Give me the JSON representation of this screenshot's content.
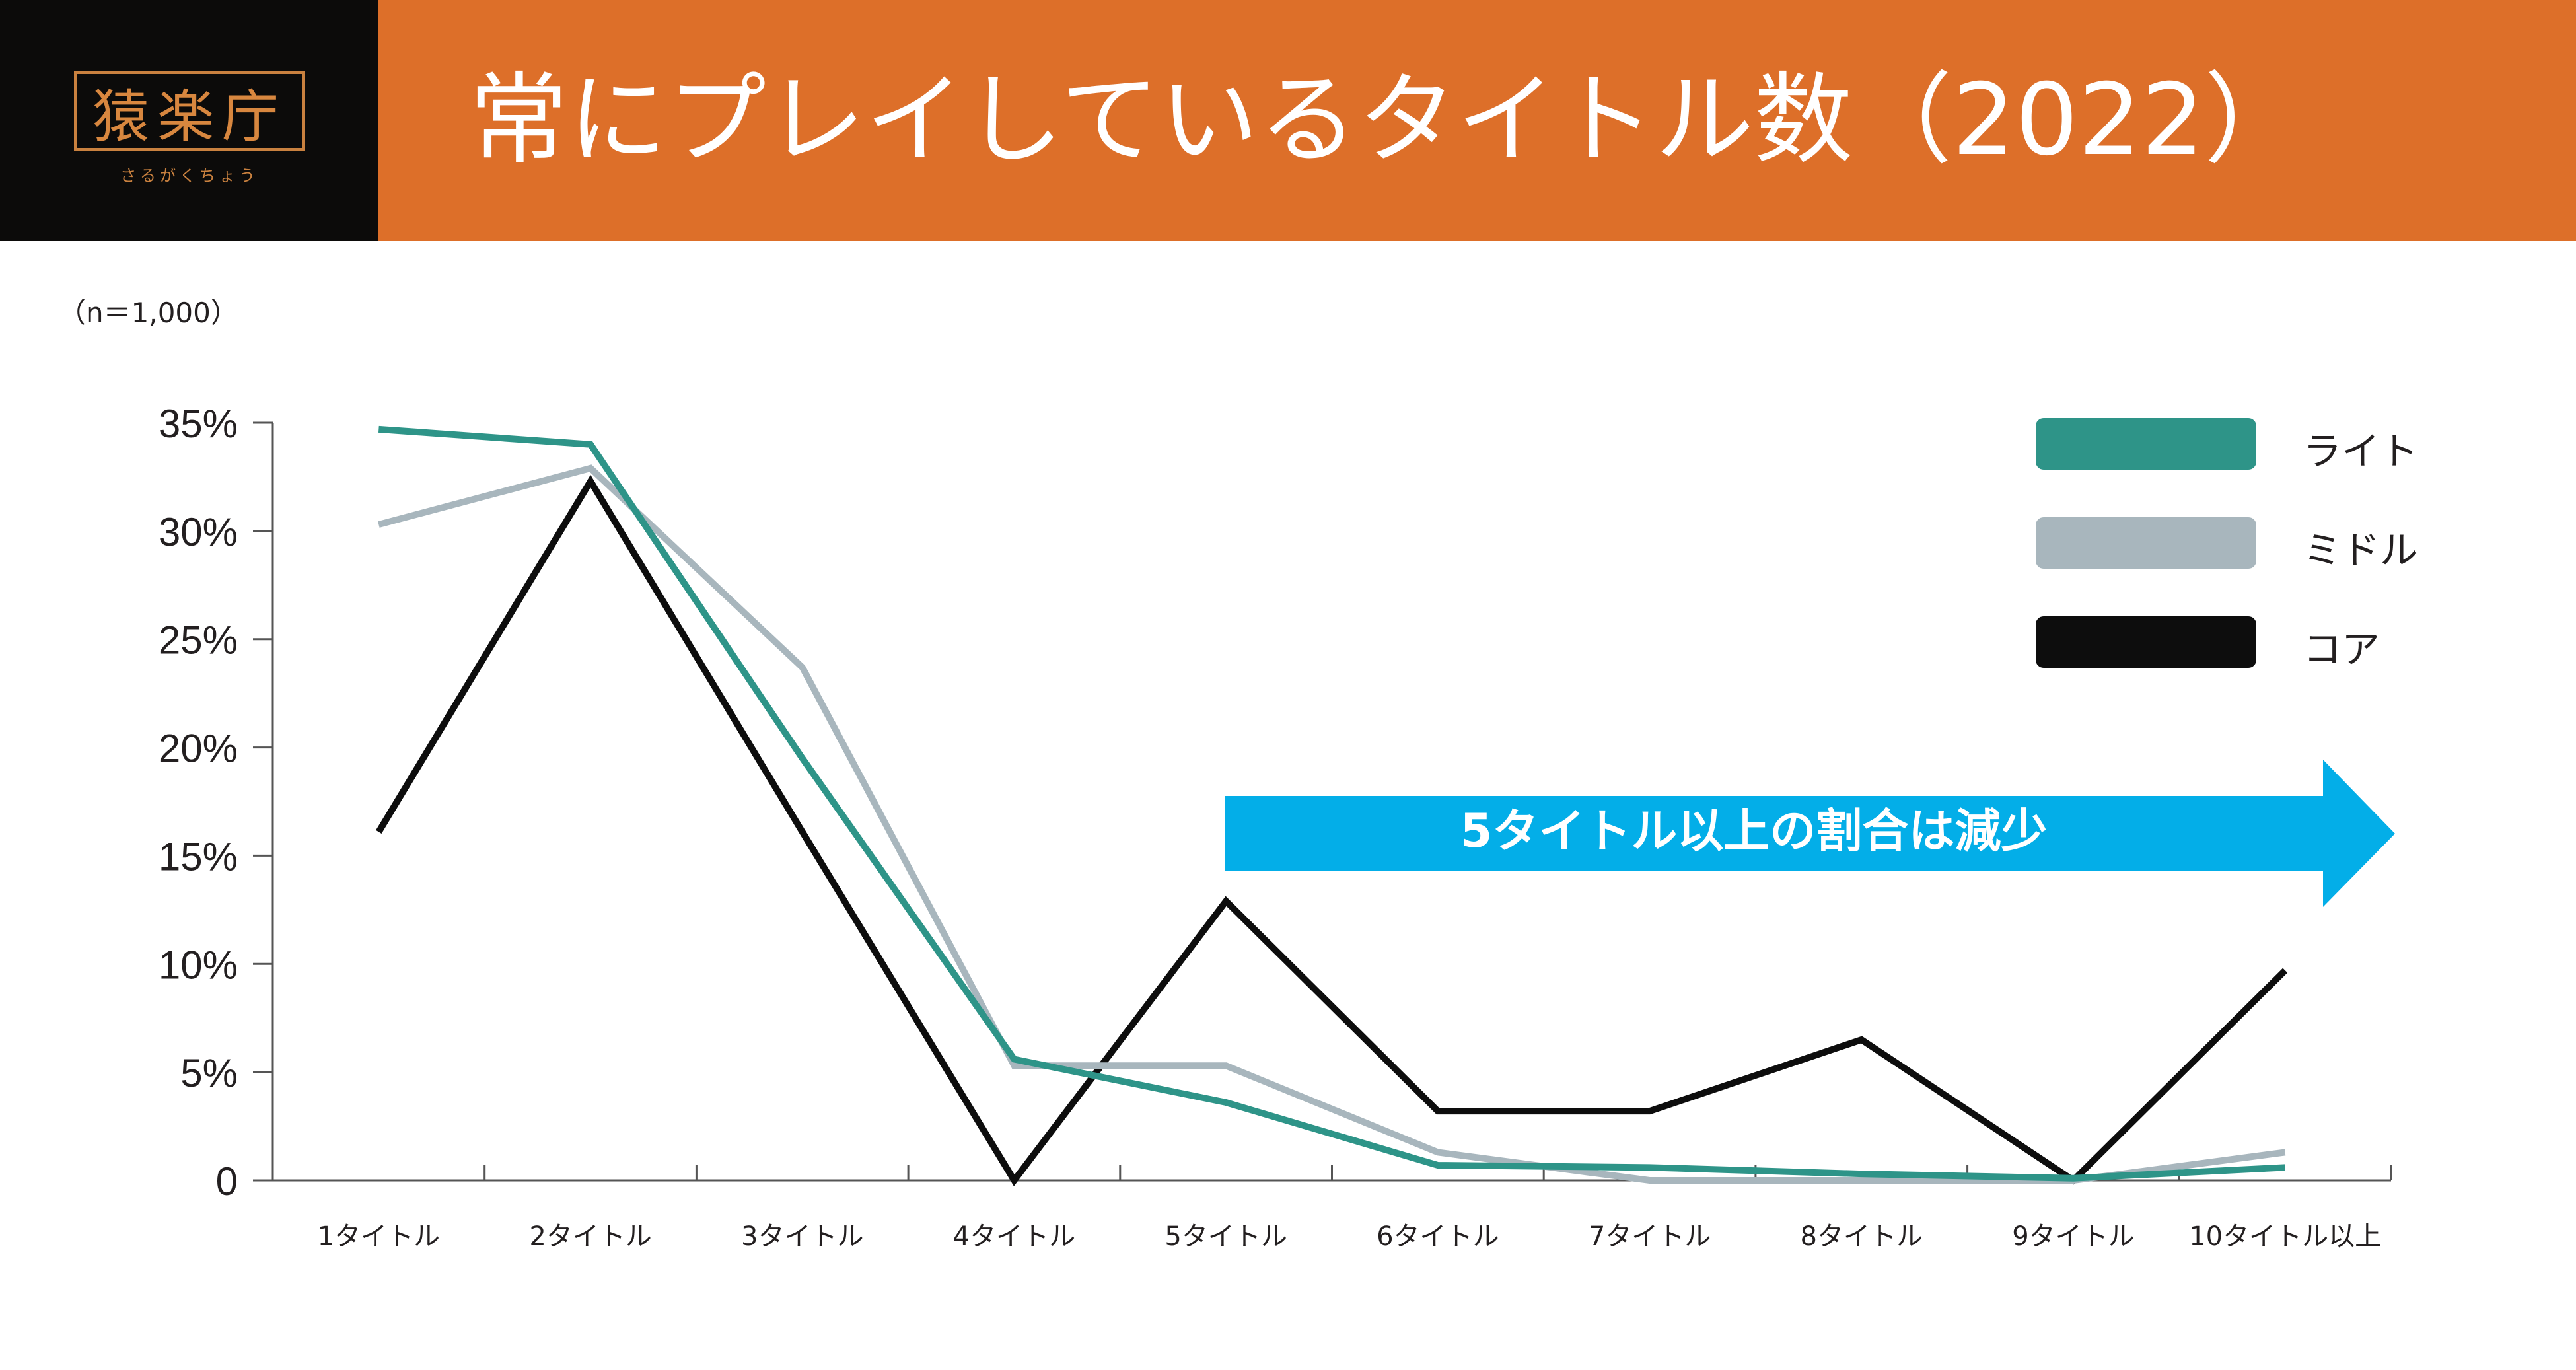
{
  "header": {
    "logo": {
      "text": "猿楽庁",
      "subtext": "さるがくちょう"
    },
    "title": "常にプレイしているタイトル数（2022）"
  },
  "note": "（n＝1,000）",
  "colors": {
    "header_bg": "#dd6f29",
    "logo_bg": "#0c0b0a",
    "arrow": "#03aee8",
    "light": "#2e9488",
    "middle": "#a8b6bd",
    "core": "#0d0d0d"
  },
  "chart_data": {
    "type": "line",
    "categories": [
      "1タイトル",
      "2タイトル",
      "3タイトル",
      "4タイトル",
      "5タイトル",
      "6タイトル",
      "7タイトル",
      "8タイトル",
      "9タイトル",
      "10タイトル以上"
    ],
    "y_ticks": [
      "0",
      "5%",
      "10%",
      "15%",
      "20%",
      "25%",
      "30%",
      "35%"
    ],
    "ylim": [
      0,
      35
    ],
    "series": [
      {
        "name": "ライト",
        "color": "#2e9488",
        "values": [
          34.7,
          34.0,
          19.5,
          5.6,
          3.6,
          0.7,
          0.6,
          0.3,
          0.1,
          0.6
        ]
      },
      {
        "name": "ミドル",
        "color": "#a8b6bd",
        "values": [
          30.3,
          32.9,
          23.7,
          5.3,
          5.3,
          1.3,
          0.0,
          0.0,
          0.0,
          1.3
        ]
      },
      {
        "name": "コア",
        "color": "#0d0d0d",
        "values": [
          16.1,
          32.3,
          16.1,
          0.0,
          12.9,
          3.2,
          3.2,
          6.5,
          0.0,
          9.7
        ]
      }
    ],
    "legend_position": "top-right",
    "annotation": {
      "text": "5タイトル以上の割合は減少",
      "direction": "right"
    }
  }
}
